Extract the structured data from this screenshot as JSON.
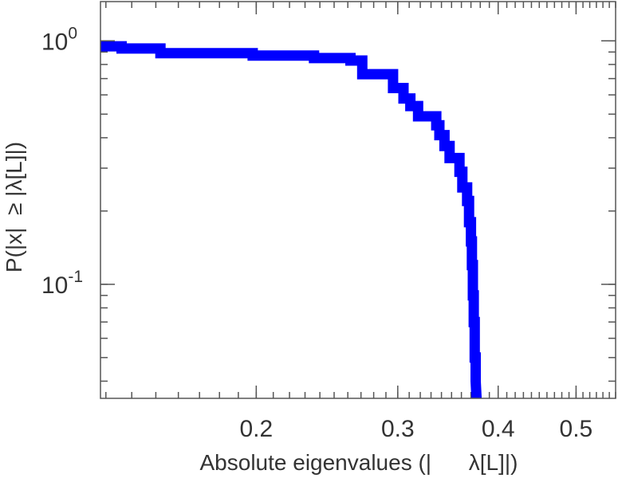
{
  "chart_data": {
    "type": "line",
    "xlabel": "Absolute eigenvalues (|      λ[L]|)",
    "ylabel": "P(|x|  ≥ |λ[L]|)",
    "x_scale": "log",
    "y_scale": "log",
    "xlim": [
      0.128,
      0.56
    ],
    "ylim": [
      0.034,
      1.45
    ],
    "grid": false,
    "x_ticks": [
      {
        "value": 0.2,
        "label": "0.2"
      },
      {
        "value": 0.3,
        "label": "0.3"
      },
      {
        "value": 0.4,
        "label": "0.4"
      },
      {
        "value": 0.5,
        "label": "0.5"
      }
    ],
    "y_ticks": [
      {
        "value": 1,
        "base": "10",
        "exp": "0"
      },
      {
        "value": 0.1,
        "base": "10",
        "exp": "-1"
      }
    ],
    "colors": {
      "series": "#0000ff",
      "axes": "#555555",
      "text": "#333333"
    },
    "series": [
      {
        "x": [
          0.128,
          0.136,
          0.136,
          0.152,
          0.152,
          0.198,
          0.198,
          0.236,
          0.236,
          0.262,
          0.262,
          0.271,
          0.271,
          0.296,
          0.296,
          0.305,
          0.305,
          0.311,
          0.311,
          0.318,
          0.318,
          0.335,
          0.335,
          0.338,
          0.338,
          0.343,
          0.343,
          0.348,
          0.348,
          0.358,
          0.358,
          0.361,
          0.361,
          0.366,
          0.366,
          0.368,
          0.368,
          0.37,
          0.37,
          0.371,
          0.371,
          0.372,
          0.372,
          0.373,
          0.373,
          0.374,
          0.374,
          0.375,
          0.375,
          0.376
        ],
        "y": [
          0.95,
          0.95,
          0.93,
          0.93,
          0.89,
          0.89,
          0.87,
          0.87,
          0.85,
          0.85,
          0.83,
          0.83,
          0.73,
          0.73,
          0.64,
          0.64,
          0.58,
          0.58,
          0.54,
          0.54,
          0.49,
          0.49,
          0.45,
          0.45,
          0.41,
          0.41,
          0.37,
          0.37,
          0.33,
          0.33,
          0.29,
          0.29,
          0.25,
          0.25,
          0.22,
          0.22,
          0.18,
          0.18,
          0.15,
          0.15,
          0.12,
          0.12,
          0.09,
          0.09,
          0.07,
          0.07,
          0.05,
          0.05,
          0.04,
          0.034
        ]
      }
    ]
  }
}
